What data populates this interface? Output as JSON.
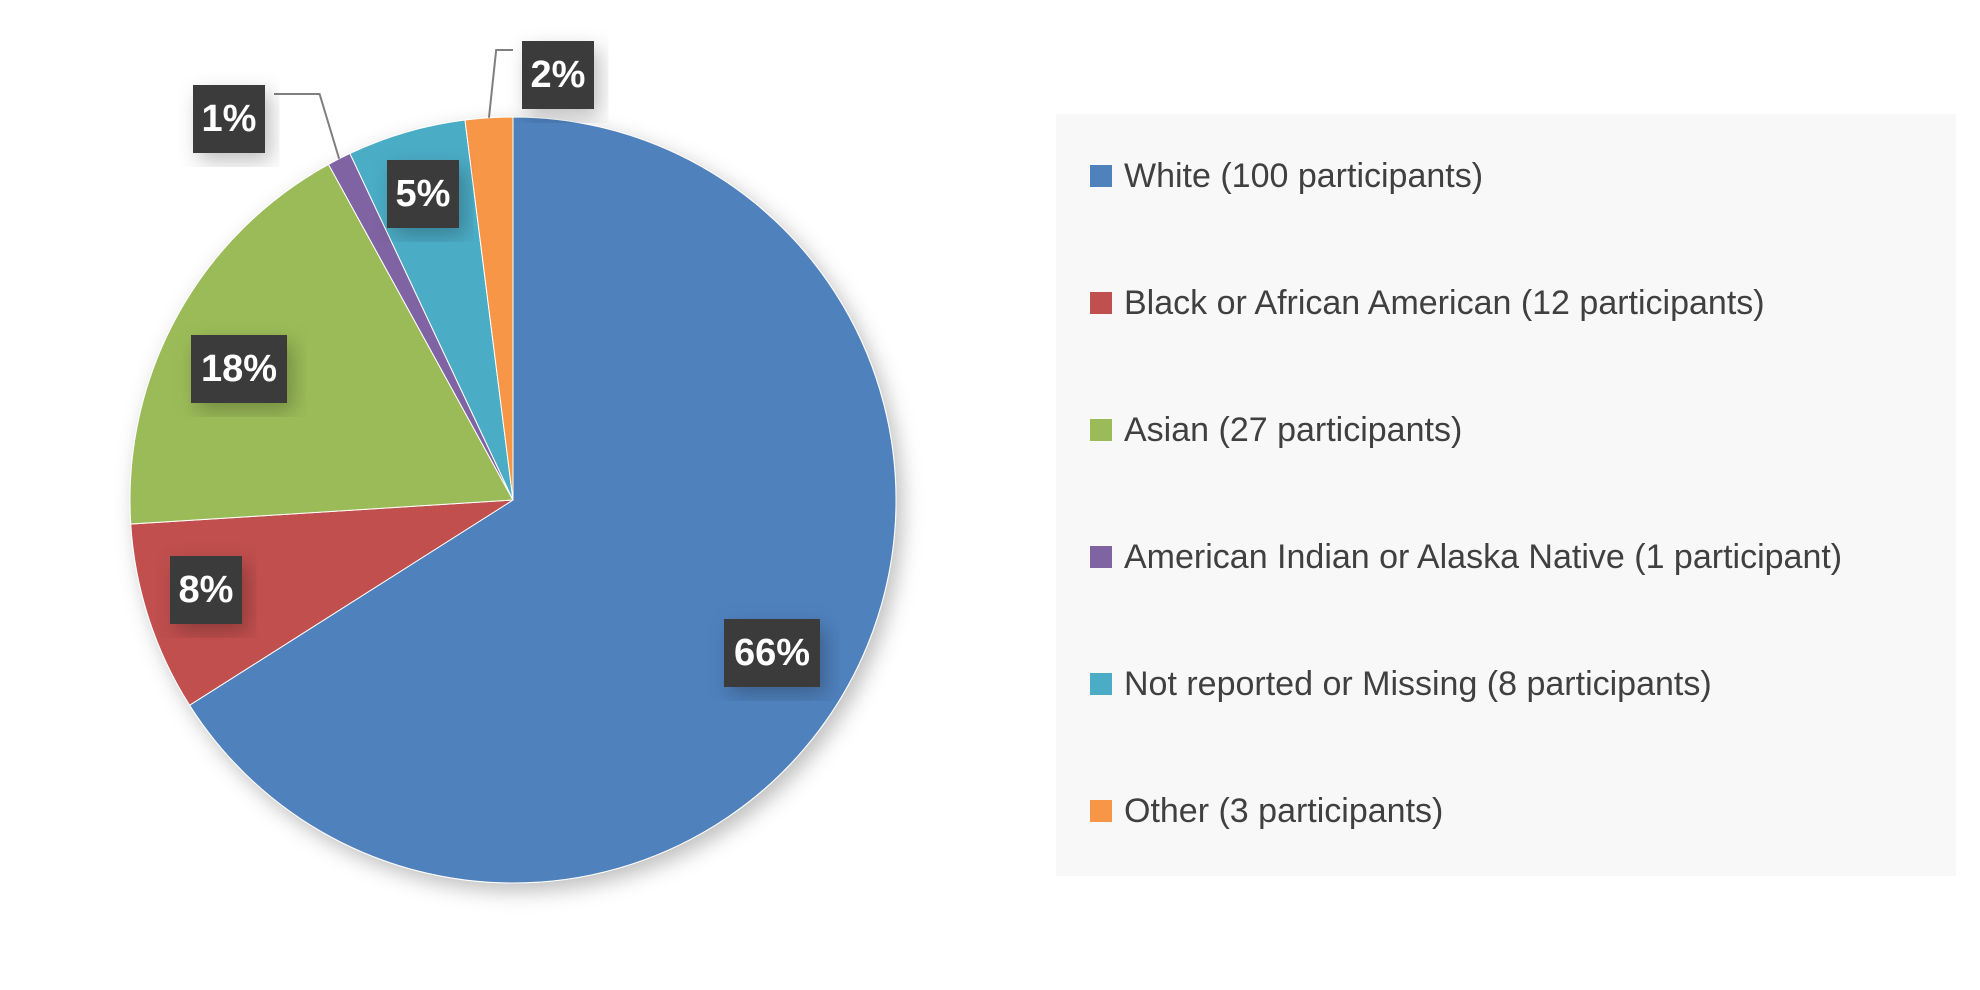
{
  "chart_data": {
    "type": "pie",
    "categories": [
      "White (100 participants)",
      "Black or African American (12 participants)",
      "Asian (27 participants)",
      "American Indian or Alaska Native (1 participant)",
      "Not reported or Missing (8 participants)",
      "Other (3 participants)"
    ],
    "values": [
      66,
      8,
      18,
      1,
      5,
      2
    ],
    "value_labels": [
      "66%",
      "8%",
      "18%",
      "1%",
      "5%",
      "2%"
    ],
    "colors": [
      "#4f81bd",
      "#c0504d",
      "#9bbb59",
      "#8064a2",
      "#4bacc6",
      "#f79646"
    ],
    "legend": "right"
  }
}
